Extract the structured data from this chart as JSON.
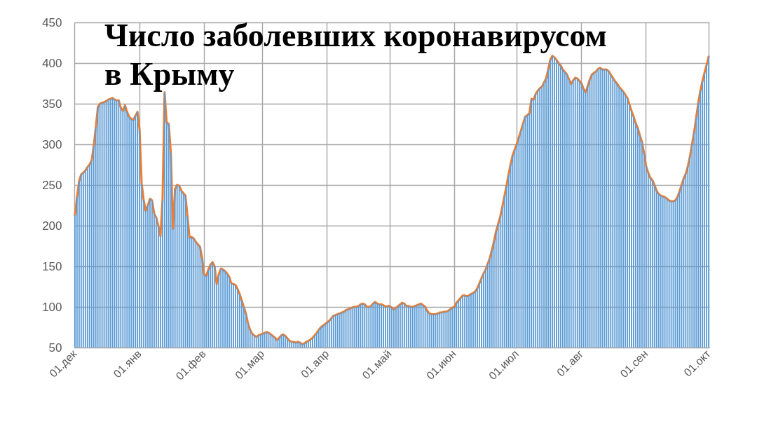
{
  "chart_data": {
    "type": "bar",
    "title": "Число заболевших коронавирусом в Крыму",
    "categories": [
      "01.дек",
      null,
      null,
      null,
      null,
      null,
      null,
      null,
      null,
      null,
      null,
      null,
      null,
      null,
      null,
      null,
      null,
      null,
      null,
      null,
      null,
      null,
      null,
      null,
      null,
      null,
      null,
      null,
      null,
      null,
      null,
      "01.янв",
      null,
      null,
      null,
      null,
      null,
      null,
      null,
      null,
      null,
      null,
      null,
      null,
      null,
      null,
      null,
      null,
      null,
      null,
      null,
      null,
      null,
      null,
      null,
      null,
      null,
      null,
      null,
      null,
      null,
      null,
      "01.фев",
      null,
      null,
      null,
      null,
      null,
      null,
      null,
      null,
      null,
      null,
      null,
      null,
      null,
      null,
      null,
      null,
      null,
      null,
      null,
      null,
      null,
      null,
      null,
      null,
      null,
      null,
      null,
      "01.мар",
      null,
      null,
      null,
      null,
      null,
      null,
      null,
      null,
      null,
      null,
      null,
      null,
      null,
      null,
      null,
      null,
      null,
      null,
      null,
      null,
      null,
      null,
      null,
      null,
      null,
      null,
      null,
      null,
      null,
      null,
      "01.апр",
      null,
      null,
      null,
      null,
      null,
      null,
      null,
      null,
      null,
      null,
      null,
      null,
      null,
      null,
      null,
      null,
      null,
      null,
      null,
      null,
      null,
      null,
      null,
      null,
      null,
      null,
      null,
      null,
      null,
      "01.май",
      null,
      null,
      null,
      null,
      null,
      null,
      null,
      null,
      null,
      null,
      null,
      null,
      null,
      null,
      null,
      null,
      null,
      null,
      null,
      null,
      null,
      null,
      null,
      null,
      null,
      null,
      null,
      null,
      null,
      null,
      "01.июн",
      null,
      null,
      null,
      null,
      null,
      null,
      null,
      null,
      null,
      null,
      null,
      null,
      null,
      null,
      null,
      null,
      null,
      null,
      null,
      null,
      null,
      null,
      null,
      null,
      null,
      null,
      null,
      null,
      null,
      "01.июл",
      null,
      null,
      null,
      null,
      null,
      null,
      null,
      null,
      null,
      null,
      null,
      null,
      null,
      null,
      null,
      null,
      null,
      null,
      null,
      null,
      null,
      null,
      null,
      null,
      null,
      null,
      null,
      null,
      null,
      null,
      "01.авг",
      null,
      null,
      null,
      null,
      null,
      null,
      null,
      null,
      null,
      null,
      null,
      null,
      null,
      null,
      null,
      null,
      null,
      null,
      null,
      null,
      null,
      null,
      null,
      null,
      null,
      null,
      null,
      null,
      null,
      null,
      "01.сен",
      null,
      null,
      null,
      null,
      null,
      null,
      null,
      null,
      null,
      null,
      null,
      null,
      null,
      null,
      null,
      null,
      null,
      null,
      null,
      null,
      null,
      null,
      null,
      null,
      null,
      null,
      null,
      null,
      null,
      "01.окт"
    ],
    "series": [
      {
        "color": "#5b9bd5",
        "values": [
          213,
          235,
          255,
          263,
          265,
          268,
          272,
          275,
          280,
          298,
          321,
          346,
          350,
          351,
          352,
          353,
          355,
          356,
          357,
          355,
          354,
          354,
          345,
          341,
          348,
          340,
          334,
          331,
          330,
          335,
          340,
          318,
          252,
          231,
          218,
          225,
          233,
          231,
          215,
          210,
          200,
          187,
          231,
          364,
          327,
          325,
          290,
          196,
          245,
          250,
          249,
          243,
          240,
          237,
          211,
          185,
          186,
          184,
          180,
          177,
          174,
          160,
          140,
          138,
          146,
          152,
          155,
          150,
          128,
          140,
          147,
          146,
          144,
          141,
          137,
          129,
          128,
          127,
          122,
          116,
          108,
          100,
          92,
          80,
          72,
          67,
          65,
          63,
          65,
          66,
          67,
          68,
          69,
          68,
          66,
          64,
          62,
          59,
          62,
          65,
          66,
          64,
          61,
          58,
          57,
          57,
          56,
          57,
          56,
          54,
          55,
          57,
          58,
          60,
          62,
          65,
          68,
          72,
          75,
          77,
          79,
          81,
          83,
          86,
          89,
          90,
          91,
          92,
          93,
          94,
          96,
          97,
          98,
          99,
          100,
          100,
          101,
          103,
          104,
          103,
          100,
          100,
          101,
          104,
          106,
          104,
          103,
          103,
          102,
          100,
          101,
          101,
          99,
          97,
          99,
          101,
          103,
          105,
          104,
          101,
          101,
          100,
          100,
          101,
          102,
          103,
          104,
          102,
          100,
          95,
          92,
          91,
          91,
          91,
          92,
          93,
          93,
          94,
          94,
          95,
          97,
          99,
          100,
          105,
          108,
          111,
          114,
          114,
          113,
          114,
          116,
          117,
          119,
          123,
          129,
          135,
          141,
          146,
          153,
          160,
          170,
          181,
          193,
          202,
          211,
          223,
          236,
          249,
          263,
          276,
          287,
          294,
          301,
          309,
          317,
          326,
          334,
          336,
          338,
          356,
          355,
          362,
          366,
          369,
          371,
          376,
          381,
          392,
          404,
          409,
          407,
          404,
          400,
          397,
          392,
          389,
          386,
          380,
          374,
          379,
          382,
          381,
          378,
          375,
          368,
          364,
          372,
          380,
          386,
          388,
          390,
          393,
          394,
          392,
          392,
          392,
          390,
          386,
          382,
          378,
          375,
          371,
          368,
          365,
          361,
          357,
          349,
          341,
          334,
          326,
          320,
          311,
          303,
          289,
          273,
          265,
          259,
          256,
          250,
          243,
          239,
          237,
          236,
          235,
          233,
          231,
          230,
          230,
          231,
          235,
          242,
          250,
          258,
          264,
          273,
          285,
          300,
          315,
          333,
          351,
          366,
          378,
          388,
          398,
          408
        ]
      },
      {
        "type": "line",
        "color": "#ed7d31",
        "values": [
          213,
          235,
          255,
          263,
          265,
          268,
          272,
          275,
          280,
          298,
          321,
          346,
          350,
          351,
          352,
          353,
          355,
          356,
          357,
          355,
          354,
          354,
          345,
          341,
          348,
          340,
          334,
          331,
          330,
          335,
          340,
          318,
          252,
          231,
          218,
          225,
          233,
          231,
          215,
          210,
          200,
          187,
          231,
          364,
          327,
          325,
          290,
          196,
          245,
          250,
          249,
          243,
          240,
          237,
          211,
          185,
          186,
          184,
          180,
          177,
          174,
          160,
          140,
          138,
          146,
          152,
          155,
          150,
          128,
          140,
          147,
          146,
          144,
          141,
          137,
          129,
          128,
          127,
          122,
          116,
          108,
          100,
          92,
          80,
          72,
          67,
          65,
          63,
          65,
          66,
          67,
          68,
          69,
          68,
          66,
          64,
          62,
          59,
          62,
          65,
          66,
          64,
          61,
          58,
          57,
          57,
          56,
          57,
          56,
          54,
          55,
          57,
          58,
          60,
          62,
          65,
          68,
          72,
          75,
          77,
          79,
          81,
          83,
          86,
          89,
          90,
          91,
          92,
          93,
          94,
          96,
          97,
          98,
          99,
          100,
          100,
          101,
          103,
          104,
          103,
          100,
          100,
          101,
          104,
          106,
          104,
          103,
          103,
          102,
          100,
          101,
          101,
          99,
          97,
          99,
          101,
          103,
          105,
          104,
          101,
          101,
          100,
          100,
          101,
          102,
          103,
          104,
          102,
          100,
          95,
          92,
          91,
          91,
          91,
          92,
          93,
          93,
          94,
          94,
          95,
          97,
          99,
          100,
          105,
          108,
          111,
          114,
          114,
          113,
          114,
          116,
          117,
          119,
          123,
          129,
          135,
          141,
          146,
          153,
          160,
          170,
          181,
          193,
          202,
          211,
          223,
          236,
          249,
          263,
          276,
          287,
          294,
          301,
          309,
          317,
          326,
          334,
          336,
          338,
          356,
          355,
          362,
          366,
          369,
          371,
          376,
          381,
          392,
          404,
          409,
          407,
          404,
          400,
          397,
          392,
          389,
          386,
          380,
          374,
          379,
          382,
          381,
          378,
          375,
          368,
          364,
          372,
          380,
          386,
          388,
          390,
          393,
          394,
          392,
          392,
          392,
          390,
          386,
          382,
          378,
          375,
          371,
          368,
          365,
          361,
          357,
          349,
          341,
          334,
          326,
          320,
          311,
          303,
          289,
          273,
          265,
          259,
          256,
          250,
          243,
          239,
          237,
          236,
          235,
          233,
          231,
          230,
          230,
          231,
          235,
          242,
          250,
          258,
          264,
          273,
          285,
          300,
          315,
          333,
          351,
          366,
          378,
          388,
          398,
          408
        ]
      }
    ],
    "ylim": [
      50,
      450
    ],
    "yticks": [
      50,
      100,
      150,
      200,
      250,
      300,
      350,
      400,
      450
    ],
    "grid": true
  }
}
